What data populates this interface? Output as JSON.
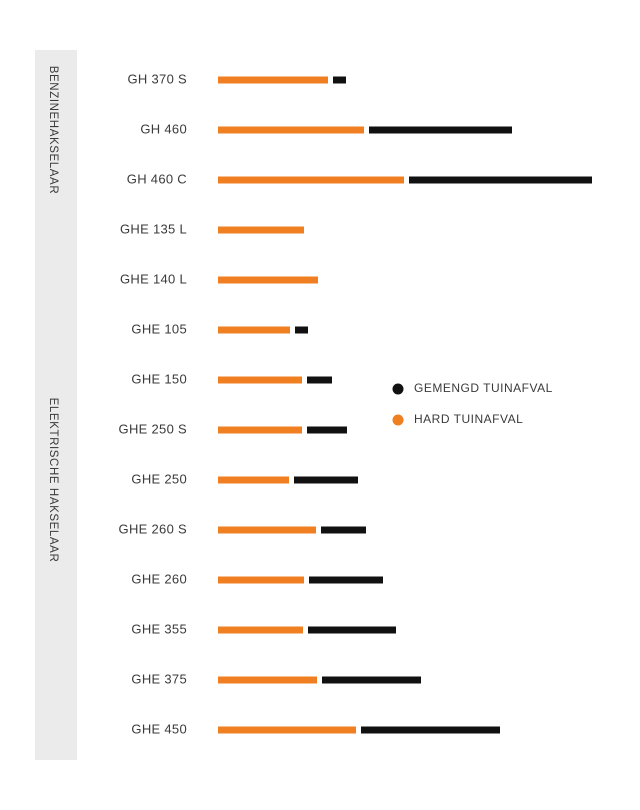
{
  "chart_data": {
    "type": "bar",
    "orientation": "horizontal",
    "stacked": true,
    "title": "",
    "xlabel": "",
    "ylabel": "",
    "categories": [
      "GH 370 S",
      "GH 460",
      "GH 460 C",
      "GHE 135 L",
      "GHE 140 L",
      "GHE 105",
      "GHE 150",
      "GHE 250 S",
      "GHE 250",
      "GHE 260 S",
      "GHE 260",
      "GHE 355",
      "GHE 375",
      "GHE 450"
    ],
    "groups": [
      {
        "label": "BENZINEHAKSELAAR",
        "categories": [
          "GH 370 S",
          "GH 460",
          "GH 460 C"
        ]
      },
      {
        "label": "ELEKTRISCHE HAKSELAAR",
        "categories": [
          "GHE 135 L",
          "GHE 140 L",
          "GHE 105",
          "GHE 150",
          "GHE 250 S",
          "GHE 250",
          "GHE 260 S",
          "GHE 260",
          "GHE 355",
          "GHE 375",
          "GHE 450"
        ]
      }
    ],
    "series": [
      {
        "name": "HARD TUINAFVAL",
        "color": "#f07f22",
        "values": [
          110,
          146,
          186,
          86,
          100,
          72,
          84,
          84,
          71,
          98,
          86,
          85,
          99,
          138
        ]
      },
      {
        "name": "GEMENGD TUINAFVAL",
        "color": "#111111",
        "values": [
          13,
          143,
          183,
          0,
          0,
          13,
          25,
          40,
          64,
          45,
          74,
          88,
          99,
          139
        ]
      }
    ],
    "xlim": [
      0,
      375
    ],
    "legend": {
      "position": "right-middle",
      "entries": [
        {
          "label": "GEMENGD TUINAFVAL",
          "color": "#111111"
        },
        {
          "label": "HARD TUINAFVAL",
          "color": "#f07f22"
        }
      ]
    },
    "grid": false,
    "group_band_color": "#ebebeb"
  }
}
